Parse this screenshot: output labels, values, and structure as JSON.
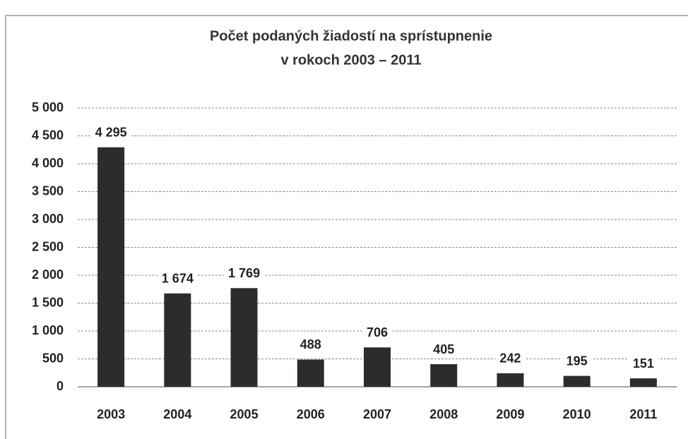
{
  "chart_data": {
    "type": "bar",
    "title": "Počet podaných žiadostí na sprístupnenie",
    "subtitle": "v rokoch 2003 – 2011",
    "categories": [
      "2003",
      "2004",
      "2005",
      "2006",
      "2007",
      "2008",
      "2009",
      "2010",
      "2011"
    ],
    "values": [
      4295,
      1674,
      1769,
      488,
      706,
      405,
      242,
      195,
      151
    ],
    "value_labels": [
      "4 295",
      "1 674",
      "1 769",
      "488",
      "706",
      "405",
      "242",
      "195",
      "151"
    ],
    "color": "#2e2b2c",
    "ylim": [
      0,
      5000
    ],
    "yticks": [
      0,
      500,
      {
        "value": 1000,
        "label": "1 000"
      },
      {
        "value": 1500,
        "label": "1 500"
      },
      {
        "value": 2000,
        "label": "2 000"
      },
      {
        "value": 2500,
        "label": "2 500"
      },
      {
        "value": 3000,
        "label": "3 000"
      },
      {
        "value": 3500,
        "label": "3 500"
      },
      {
        "value": 4000,
        "label": "4 000"
      },
      {
        "value": 4500,
        "label": "4 500"
      },
      {
        "value": 5000,
        "label": "5 000"
      }
    ],
    "grid": true
  }
}
